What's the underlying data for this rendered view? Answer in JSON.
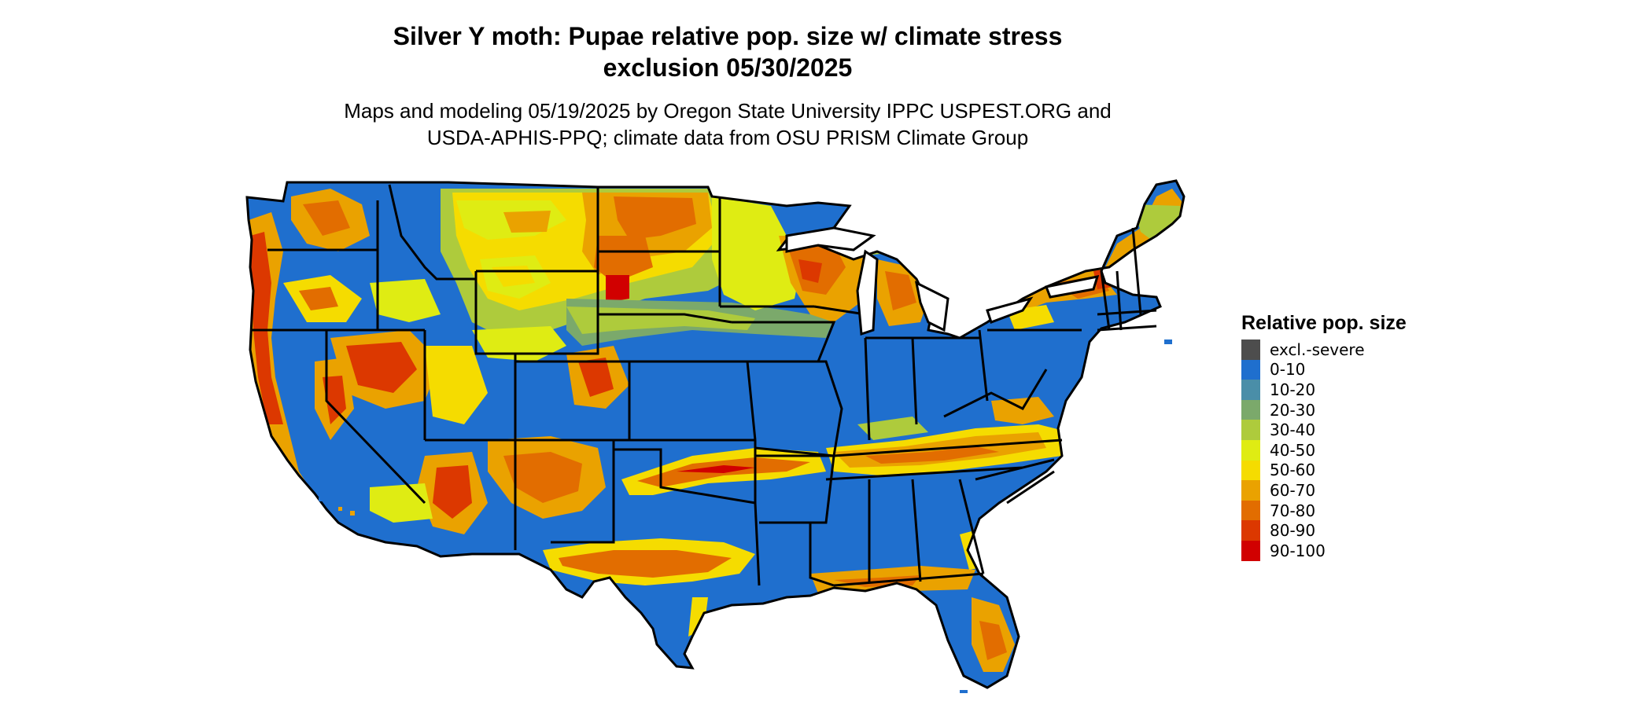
{
  "title": {
    "line1": "Silver Y moth: Pupae relative pop. size w/ climate stress",
    "line2": "exclusion 05/30/2025"
  },
  "subtitle": {
    "line1": "Maps and modeling 05/19/2025 by Oregon State University IPPC USPEST.ORG and",
    "line2": "USDA-APHIS-PPQ; climate data from OSU PRISM Climate Group"
  },
  "map": {
    "region": "Contiguous United States",
    "boundaries": "state outlines",
    "colors": {
      "background": "#1f6fce",
      "boundary": "#000000"
    }
  },
  "legend": {
    "title": "Relative pop. size",
    "items": [
      {
        "label": "excl.-severe",
        "color": "#4d4d4d"
      },
      {
        "label": "0-10",
        "color": "#1f6fce"
      },
      {
        "label": "10-20",
        "color": "#4a8ea8"
      },
      {
        "label": "20-30",
        "color": "#7ba96b"
      },
      {
        "label": "30-40",
        "color": "#aecb3c"
      },
      {
        "label": "40-50",
        "color": "#dfec13"
      },
      {
        "label": "50-60",
        "color": "#f5dc00"
      },
      {
        "label": "60-70",
        "color": "#eaa200"
      },
      {
        "label": "70-80",
        "color": "#e26d00"
      },
      {
        "label": "80-90",
        "color": "#dc3800"
      },
      {
        "label": "90-100",
        "color": "#d10000"
      }
    ]
  }
}
